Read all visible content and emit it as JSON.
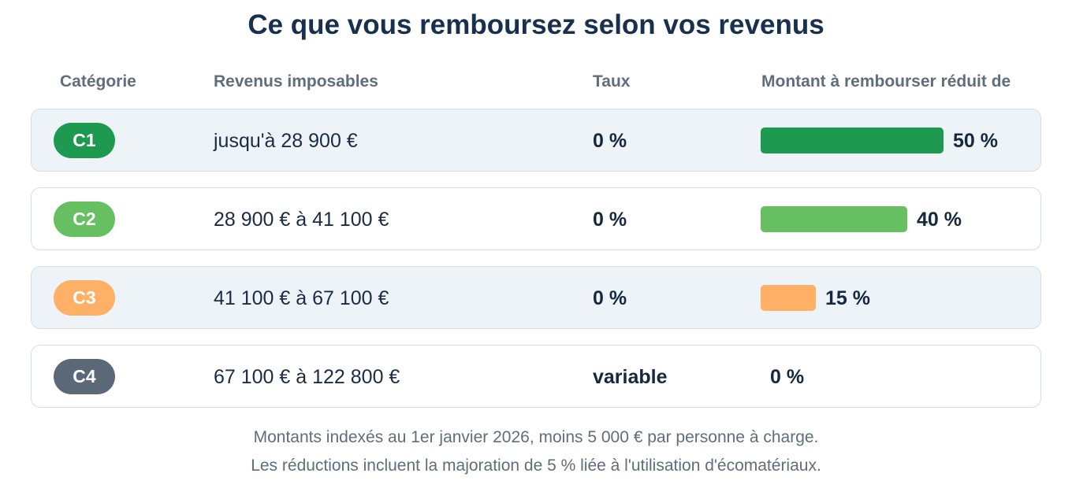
{
  "title": "Ce que vous remboursez selon vos revenus",
  "headers": {
    "category": "Catégorie",
    "income": "Revenus imposables",
    "rate": "Taux",
    "reduction": "Montant à rembourser réduit de"
  },
  "rows": [
    {
      "category": "C1",
      "income": "jusqu'à 28 900 €",
      "rate": "0 %",
      "reduction_label": "50 %",
      "color": "#1e9a50"
    },
    {
      "category": "C2",
      "income": "28 900 € à 41 100 €",
      "rate": "0 %",
      "reduction_label": "40 %",
      "color": "#66bf61"
    },
    {
      "category": "C3",
      "income": "41 100 € à 67 100 €",
      "rate": "0 %",
      "reduction_label": "15 %",
      "color": "#fdb066"
    },
    {
      "category": "C4",
      "income": "67 100 € à 122 800 €",
      "rate": "variable",
      "reduction_label": "0 %",
      "color": "#5b6878"
    }
  ],
  "chart_data": {
    "type": "bar",
    "categories": [
      "C1",
      "C2",
      "C3",
      "C4"
    ],
    "values": [
      50,
      40,
      15,
      0
    ],
    "ylabel": "Montant à rembourser réduit de",
    "ylim": [
      0,
      50
    ]
  },
  "notes": {
    "line1": "Montants indexés au 1er janvier 2026, moins 5 000 € par personne à charge.",
    "line2": "Les réductions incluent la majoration de 5 % liée à l'utilisation d'écomatériaux."
  }
}
